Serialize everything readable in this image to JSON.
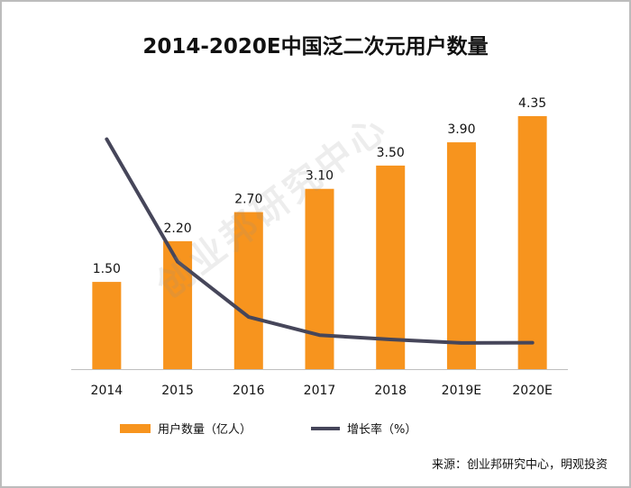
{
  "title": "2014-2020E中国泛二次元用户数量",
  "colors": {
    "bar": "#F7941E",
    "line": "#46465A",
    "axis": "#BFBFBF"
  },
  "chart_data": {
    "type": "bar",
    "title": "2014-2020E中国泛二次元用户数量",
    "categories": [
      "2014",
      "2015",
      "2016",
      "2017",
      "2018",
      "2019E",
      "2020E"
    ],
    "series": [
      {
        "name": "用户数量（亿人）",
        "type": "bar",
        "values": [
          1.5,
          2.2,
          2.7,
          3.1,
          3.5,
          3.9,
          4.35
        ],
        "labels": [
          "1.50",
          "2.20",
          "2.70",
          "3.10",
          "3.50",
          "3.90",
          "4.35"
        ]
      },
      {
        "name": "增长率（%）",
        "type": "line",
        "values": [
          100,
          46.7,
          22.7,
          14.8,
          12.9,
          11.4,
          11.5
        ]
      }
    ],
    "ylim": [
      0,
      5
    ],
    "line_ylim": [
      0,
      110
    ],
    "grid": false,
    "legend_position": "bottom"
  },
  "legend": {
    "bar_label": "用户数量（亿人）",
    "line_label": "增长率（%）"
  },
  "source": "来源：创业邦研究中心，明观投资",
  "watermark": "创业邦研究中心"
}
